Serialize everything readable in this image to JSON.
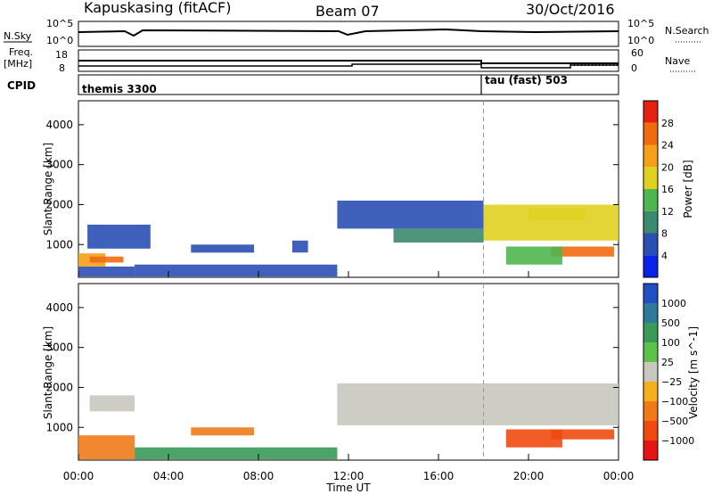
{
  "header": {
    "station": "Kapuskasing (fitACF)",
    "beam": "Beam 07",
    "date": "30/Oct/2016"
  },
  "strip_panels": {
    "nsky_label": "N.Sky",
    "nsky_ticks": [
      "10^5",
      "10^0"
    ],
    "nsearch_label": "N.Search",
    "nsearch_ticks": [
      "10^5",
      "10^0"
    ],
    "freq_label_line1": "Freq.",
    "freq_label_line2": "[MHz]",
    "freq_ticks": [
      "18",
      "8"
    ],
    "nave_label": "Nave",
    "nave_ticks": [
      "60",
      "0"
    ],
    "cpid_label": "CPID",
    "cpid_modes": [
      "themis 3300",
      "tau (fast) 503"
    ]
  },
  "x_axis": {
    "label": "Time UT",
    "ticks": [
      "00:00",
      "04:00",
      "08:00",
      "12:00",
      "16:00",
      "20:00",
      "00:00"
    ]
  },
  "colors": {
    "power_scale": [
      "#0a23e6",
      "#2a4fb4",
      "#3c8a6e",
      "#4fb64f",
      "#e0d020",
      "#f5a018",
      "#f06a10",
      "#e52010"
    ],
    "velocity_scale": [
      "#2050c0",
      "#2f7a9a",
      "#3a9a5a",
      "#5cc24a",
      "#c8c8c0",
      "#f5b020",
      "#f07a18",
      "#f04a10",
      "#e51515"
    ]
  },
  "chart_data": [
    {
      "type": "heatmap",
      "title": "",
      "xlabel": "Time UT",
      "ylabel": "Slant Range [km]",
      "xlim": [
        0,
        24
      ],
      "ylim": [
        180,
        4600
      ],
      "yticks": [
        "1000",
        "2000",
        "3000",
        "4000"
      ],
      "colorbar_label": "Power [dB]",
      "colorbar_ticks": [
        "4",
        "8",
        "12",
        "16",
        "20",
        "24",
        "28"
      ],
      "regions": [
        {
          "t": [
            0.0,
            2.5
          ],
          "r": [
            200,
            450
          ],
          "value": 6
        },
        {
          "t": [
            0.0,
            1.2
          ],
          "r": [
            450,
            780
          ],
          "value": 22
        },
        {
          "t": [
            0.5,
            2.0
          ],
          "r": [
            550,
            700
          ],
          "value": 26
        },
        {
          "t": [
            0.4,
            3.2
          ],
          "r": [
            900,
            1500
          ],
          "value": 9
        },
        {
          "t": [
            2.5,
            11.5
          ],
          "r": [
            200,
            500
          ],
          "value": 8
        },
        {
          "t": [
            5.0,
            7.8
          ],
          "r": [
            800,
            1000
          ],
          "value": 9
        },
        {
          "t": [
            9.5,
            10.2
          ],
          "r": [
            800,
            1100
          ],
          "value": 8
        },
        {
          "t": [
            11.5,
            18.0
          ],
          "r": [
            1400,
            2100
          ],
          "value": 9
        },
        {
          "t": [
            14.0,
            18.0
          ],
          "r": [
            1050,
            1400
          ],
          "value": 12
        },
        {
          "t": [
            18.0,
            24.0
          ],
          "r": [
            1100,
            2000
          ],
          "value": 18
        },
        {
          "t": [
            20.0,
            22.5
          ],
          "r": [
            1600,
            1900
          ],
          "value": 20
        },
        {
          "t": [
            21.0,
            23.8
          ],
          "r": [
            700,
            950
          ],
          "value": 28
        },
        {
          "t": [
            19.0,
            21.5
          ],
          "r": [
            500,
            950
          ],
          "value": 14
        }
      ]
    },
    {
      "type": "heatmap",
      "title": "",
      "xlabel": "Time UT",
      "ylabel": "Slant Range [km]",
      "xlim": [
        0,
        24
      ],
      "ylim": [
        180,
        4600
      ],
      "yticks": [
        "1000",
        "2000",
        "3000",
        "4000"
      ],
      "colorbar_label": "Velocity [m s^-1]",
      "colorbar_ticks": [
        "1000",
        "500",
        "100",
        "25",
        "−25",
        "−100",
        "−500",
        "−1000"
      ],
      "regions": [
        {
          "t": [
            0.0,
            2.5
          ],
          "r": [
            200,
            800
          ],
          "value": -100
        },
        {
          "t": [
            0.5,
            2.5
          ],
          "r": [
            1400,
            1800
          ],
          "value": 0
        },
        {
          "t": [
            2.5,
            11.5
          ],
          "r": [
            200,
            500
          ],
          "value": 100
        },
        {
          "t": [
            5.0,
            7.8
          ],
          "r": [
            800,
            1000
          ],
          "value": -100
        },
        {
          "t": [
            11.5,
            24.0
          ],
          "r": [
            1050,
            2100
          ],
          "value": 0
        },
        {
          "t": [
            19.0,
            21.5
          ],
          "r": [
            500,
            950
          ],
          "value": -300
        },
        {
          "t": [
            21.0,
            23.8
          ],
          "r": [
            700,
            950
          ],
          "value": -300
        }
      ]
    }
  ]
}
